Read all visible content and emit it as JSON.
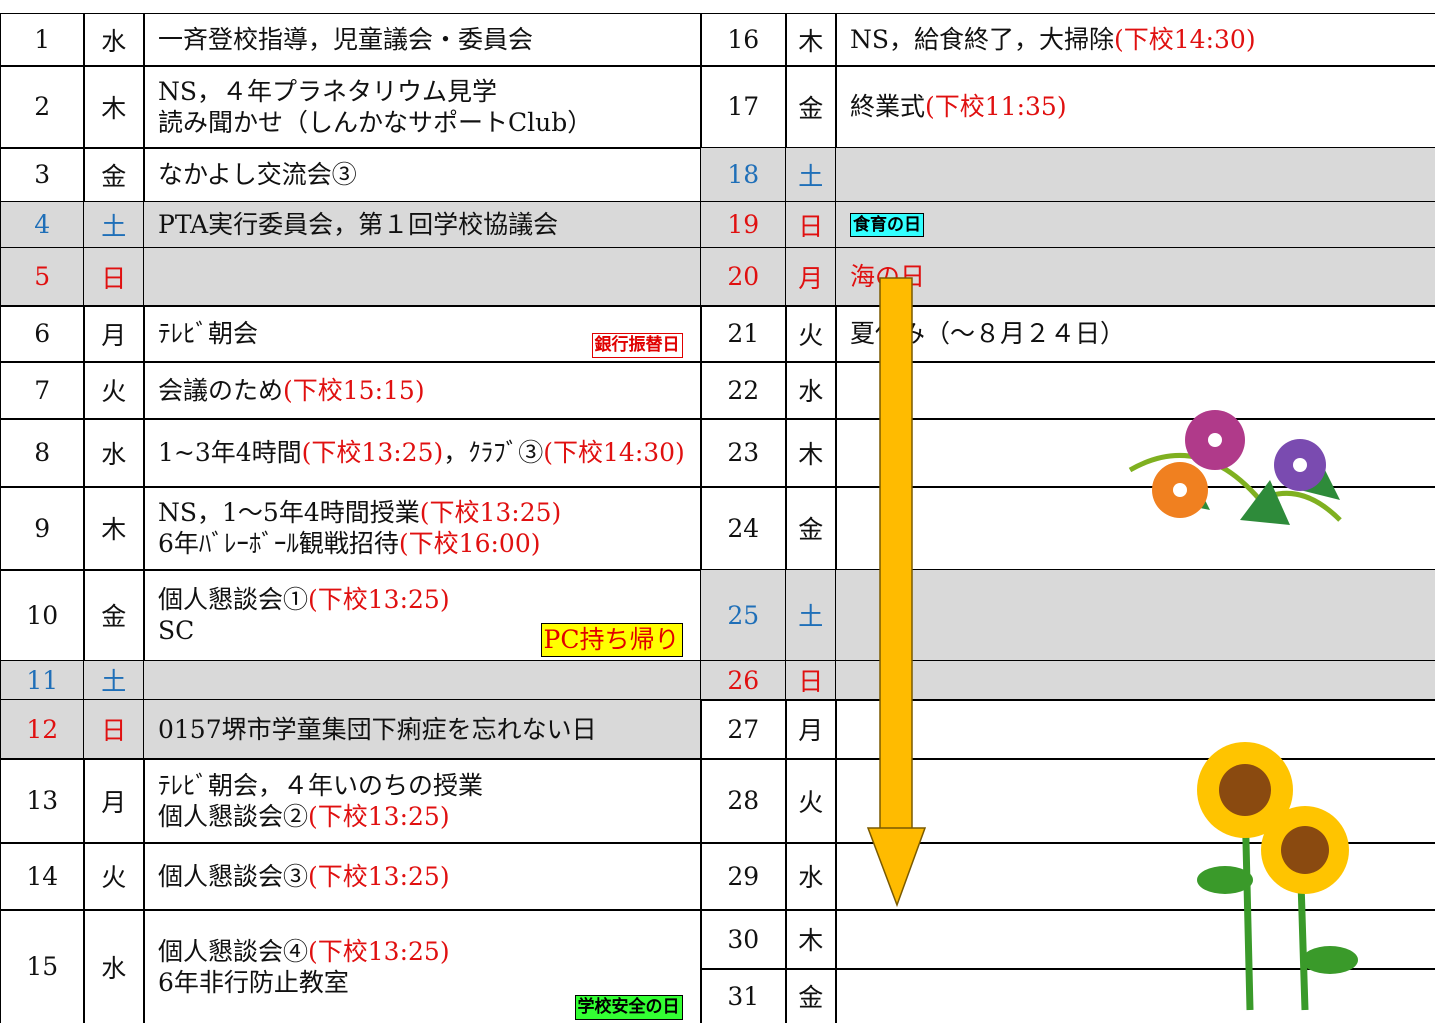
{
  "left": [
    {
      "day": 1,
      "weekday": "水",
      "lines": [
        [
          {
            "text": "一斉登校指導，児童議会・委員会"
          }
        ]
      ]
    },
    {
      "day": 2,
      "weekday": "木",
      "lines": [
        [
          {
            "text": "NS，４年プラネタリウム見学"
          }
        ],
        [
          {
            "text": "読み聞かせ（しんかなサポートClub）"
          }
        ]
      ]
    },
    {
      "day": 3,
      "weekday": "金",
      "lines": [
        [
          {
            "text": "なかよし交流会③"
          }
        ]
      ]
    },
    {
      "day": 4,
      "weekday": "土",
      "color": "#1f6fb8",
      "shaded": true,
      "lines": [
        [
          {
            "text": "PTA実行委員会，第１回学校協議会"
          }
        ]
      ]
    },
    {
      "day": 5,
      "weekday": "日",
      "color": "#e01010",
      "shaded": true,
      "lines": []
    },
    {
      "day": 6,
      "weekday": "月",
      "lines": [
        [
          {
            "text": "ﾃﾚﾋﾞ朝会"
          }
        ]
      ],
      "badge": {
        "text": "銀行振替日",
        "bg": "#ffffff",
        "color": "#e00000"
      }
    },
    {
      "day": 7,
      "weekday": "火",
      "lines": [
        [
          {
            "text": "会議のため"
          },
          {
            "text": "(下校15:15)",
            "color": "#e01010"
          }
        ]
      ]
    },
    {
      "day": 8,
      "weekday": "水",
      "lines": [
        [
          {
            "text": "1~3年4時間"
          },
          {
            "text": "(下校13:25)",
            "color": "#e01010"
          },
          {
            "text": "，ｸﾗﾌﾞ③"
          },
          {
            "text": "(下校14:30)",
            "color": "#e01010"
          }
        ]
      ]
    },
    {
      "day": 9,
      "weekday": "木",
      "lines": [
        [
          {
            "text": "NS，1～5年4時間授業"
          },
          {
            "text": "(下校13:25)",
            "color": "#e01010"
          }
        ],
        [
          {
            "text": "6年ﾊﾞﾚｰﾎﾞｰﾙ観戦招待"
          },
          {
            "text": "(下校16:00)",
            "color": "#e01010"
          }
        ]
      ]
    },
    {
      "day": 10,
      "weekday": "金",
      "lines": [
        [
          {
            "text": "個人懇談会①"
          },
          {
            "text": "(下校13:25)",
            "color": "#e01010"
          }
        ],
        [
          {
            "text": "SC"
          }
        ]
      ],
      "badge": {
        "text": "PC持ち帰り",
        "bg": "#ffff00",
        "color": "#e00000"
      }
    },
    {
      "day": 11,
      "weekday": "土",
      "color": "#1f6fb8",
      "shaded": true,
      "lines": []
    },
    {
      "day": 12,
      "weekday": "日",
      "color": "#e01010",
      "shaded": true,
      "lines": [
        [
          {
            "text": "0157堺市学童集団下痢症を忘れない日"
          }
        ]
      ]
    },
    {
      "day": 13,
      "weekday": "月",
      "lines": [
        [
          {
            "text": "ﾃﾚﾋﾞ朝会，４年いのちの授業"
          }
        ],
        [
          {
            "text": "個人懇談会②"
          },
          {
            "text": "(下校13:25)",
            "color": "#e01010"
          }
        ]
      ]
    },
    {
      "day": 14,
      "weekday": "火",
      "lines": [
        [
          {
            "text": "個人懇談会③"
          },
          {
            "text": "(下校13:25)",
            "color": "#e01010"
          }
        ]
      ]
    },
    {
      "day": 15,
      "weekday": "水",
      "lines": [
        [
          {
            "text": "個人懇談会④"
          },
          {
            "text": "(下校13:25)",
            "color": "#e01010"
          }
        ],
        [
          {
            "text": "6年非行防止教室"
          }
        ]
      ],
      "badge": {
        "text": "学校安全の日",
        "bg": "#33ff33",
        "color": "#000000"
      }
    }
  ],
  "right": [
    {
      "day": 16,
      "weekday": "木",
      "lines": [
        [
          {
            "text": "NS，給食終了，大掃除"
          },
          {
            "text": "(下校14:30)",
            "color": "#e01010"
          }
        ]
      ]
    },
    {
      "day": 17,
      "weekday": "金",
      "lines": [
        [
          {
            "text": "終業式"
          },
          {
            "text": "(下校11:35)",
            "color": "#e01010"
          }
        ]
      ]
    },
    {
      "day": 18,
      "weekday": "土",
      "color": "#1f6fb8",
      "shaded": true,
      "lines": []
    },
    {
      "day": 19,
      "weekday": "日",
      "color": "#e01010",
      "shaded": true,
      "lines": [],
      "badge": {
        "text": "食育の日",
        "bg": "#33ffff",
        "color": "#000000"
      }
    },
    {
      "day": 20,
      "weekday": "月",
      "color": "#e01010",
      "shaded": true,
      "lines": [
        [
          {
            "text": "海の日",
            "color": "#e01010"
          }
        ]
      ]
    },
    {
      "day": 21,
      "weekday": "火",
      "lines": [
        [
          {
            "text": "夏休み（～８月２４日）"
          }
        ]
      ]
    },
    {
      "day": 22,
      "weekday": "水",
      "lines": []
    },
    {
      "day": 23,
      "weekday": "木",
      "lines": []
    },
    {
      "day": 24,
      "weekday": "金",
      "lines": []
    },
    {
      "day": 25,
      "weekday": "土",
      "color": "#1f6fb8",
      "shaded": true,
      "lines": []
    },
    {
      "day": 26,
      "weekday": "日",
      "color": "#e01010",
      "shaded": true,
      "lines": []
    },
    {
      "day": 27,
      "weekday": "月",
      "lines": []
    },
    {
      "day": 28,
      "weekday": "火",
      "lines": []
    },
    {
      "day": 29,
      "weekday": "水",
      "lines": []
    },
    {
      "day": 30,
      "weekday": "木",
      "lines": []
    },
    {
      "day": 31,
      "weekday": "金",
      "lines": []
    }
  ]
}
